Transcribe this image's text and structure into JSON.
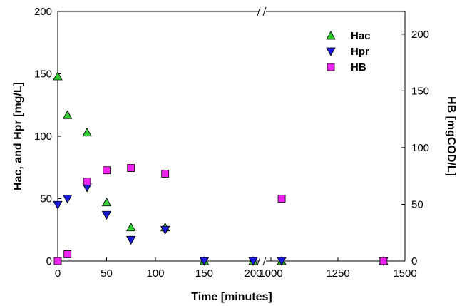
{
  "chart_data": {
    "type": "scatter",
    "x_axis": {
      "label": "Time [minutes]",
      "broken": true,
      "segments": [
        {
          "range": [
            0,
            200
          ],
          "ticks": [
            0,
            50,
            100,
            150,
            200
          ]
        },
        {
          "range": [
            1000,
            1500
          ],
          "ticks": [
            1000,
            1250,
            1500
          ]
        }
      ]
    },
    "y_left": {
      "label": "Hac, and Hpr [mg/L]",
      "range": [
        0,
        200
      ],
      "ticks": [
        0,
        50,
        100,
        150,
        200
      ]
    },
    "y_right": {
      "label": "HB [mgCOD/L]",
      "range": [
        0,
        220
      ],
      "ticks": [
        0,
        50,
        100,
        150,
        200
      ]
    },
    "legend_position": "top-right",
    "grid": false,
    "series": [
      {
        "name": "Hac",
        "axis": "left",
        "marker": "triangle-up",
        "color": "#33cc33",
        "x": [
          0,
          10,
          30,
          50,
          75,
          110,
          150,
          200,
          1040,
          1420
        ],
        "y": [
          148,
          117,
          103,
          47,
          27,
          27,
          0,
          0,
          0,
          0
        ]
      },
      {
        "name": "Hpr",
        "axis": "left",
        "marker": "triangle-down",
        "color": "#1a1adc",
        "x": [
          0,
          10,
          30,
          50,
          75,
          110,
          150,
          200,
          1040,
          1420
        ],
        "y": [
          45,
          50,
          59,
          37,
          17,
          25,
          0,
          0,
          0,
          0
        ]
      },
      {
        "name": "HB",
        "axis": "right",
        "marker": "square",
        "color": "#ee22ee",
        "x": [
          0,
          10,
          30,
          50,
          75,
          110,
          1040,
          1420
        ],
        "y": [
          0,
          6,
          70,
          80,
          82,
          77,
          55,
          0
        ]
      }
    ]
  }
}
